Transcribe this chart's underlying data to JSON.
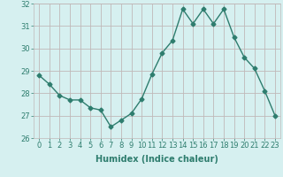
{
  "x": [
    0,
    1,
    2,
    3,
    4,
    5,
    6,
    7,
    8,
    9,
    10,
    11,
    12,
    13,
    14,
    15,
    16,
    17,
    18,
    19,
    20,
    21,
    22,
    23
  ],
  "y": [
    28.8,
    28.4,
    27.9,
    27.7,
    27.7,
    27.35,
    27.25,
    26.5,
    26.8,
    27.1,
    27.75,
    28.85,
    29.8,
    30.35,
    31.75,
    31.1,
    31.75,
    31.1,
    31.75,
    30.5,
    29.6,
    29.1,
    28.1,
    27.0
  ],
  "line_color": "#2e7d6e",
  "marker": "D",
  "marker_size": 2.5,
  "background_color": "#d6f0f0",
  "grid_color": "#c0b8b8",
  "xlabel": "Humidex (Indice chaleur)",
  "ylim": [
    26,
    32
  ],
  "xlim": [
    -0.5,
    23.5
  ],
  "yticks": [
    26,
    27,
    28,
    29,
    30,
    31,
    32
  ],
  "xticks": [
    0,
    1,
    2,
    3,
    4,
    5,
    6,
    7,
    8,
    9,
    10,
    11,
    12,
    13,
    14,
    15,
    16,
    17,
    18,
    19,
    20,
    21,
    22,
    23
  ],
  "xlabel_fontsize": 7,
  "tick_fontsize": 6,
  "line_width": 1.0
}
